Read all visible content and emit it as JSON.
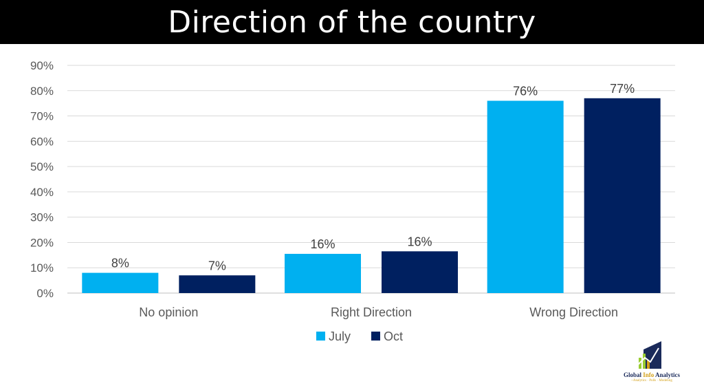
{
  "title": "Direction of the country",
  "chart_data": {
    "type": "bar",
    "title": "",
    "xlabel": "",
    "ylabel": "",
    "categories": [
      "No opinion",
      "Right Direction",
      "Wrong Direction"
    ],
    "series": [
      {
        "name": "July",
        "values": [
          8,
          15.5,
          76
        ],
        "labels": [
          "8%",
          "16%",
          "76%"
        ],
        "color": "#00b0f0"
      },
      {
        "name": "Oct",
        "values": [
          7,
          16.5,
          77
        ],
        "labels": [
          "7%",
          "16%",
          "77%"
        ],
        "color": "#002060"
      }
    ],
    "ylim": [
      0,
      90
    ],
    "yticks": [
      "0%",
      "10%",
      "20%",
      "30%",
      "40%",
      "50%",
      "60%",
      "70%",
      "80%",
      "90%"
    ],
    "grid": true,
    "legend_position": "bottom"
  },
  "logo": {
    "name_part1": "Global ",
    "name_part2": "Info",
    "name_part3": " Analytics",
    "tagline": "~Analytics · Polls · Modeling"
  }
}
